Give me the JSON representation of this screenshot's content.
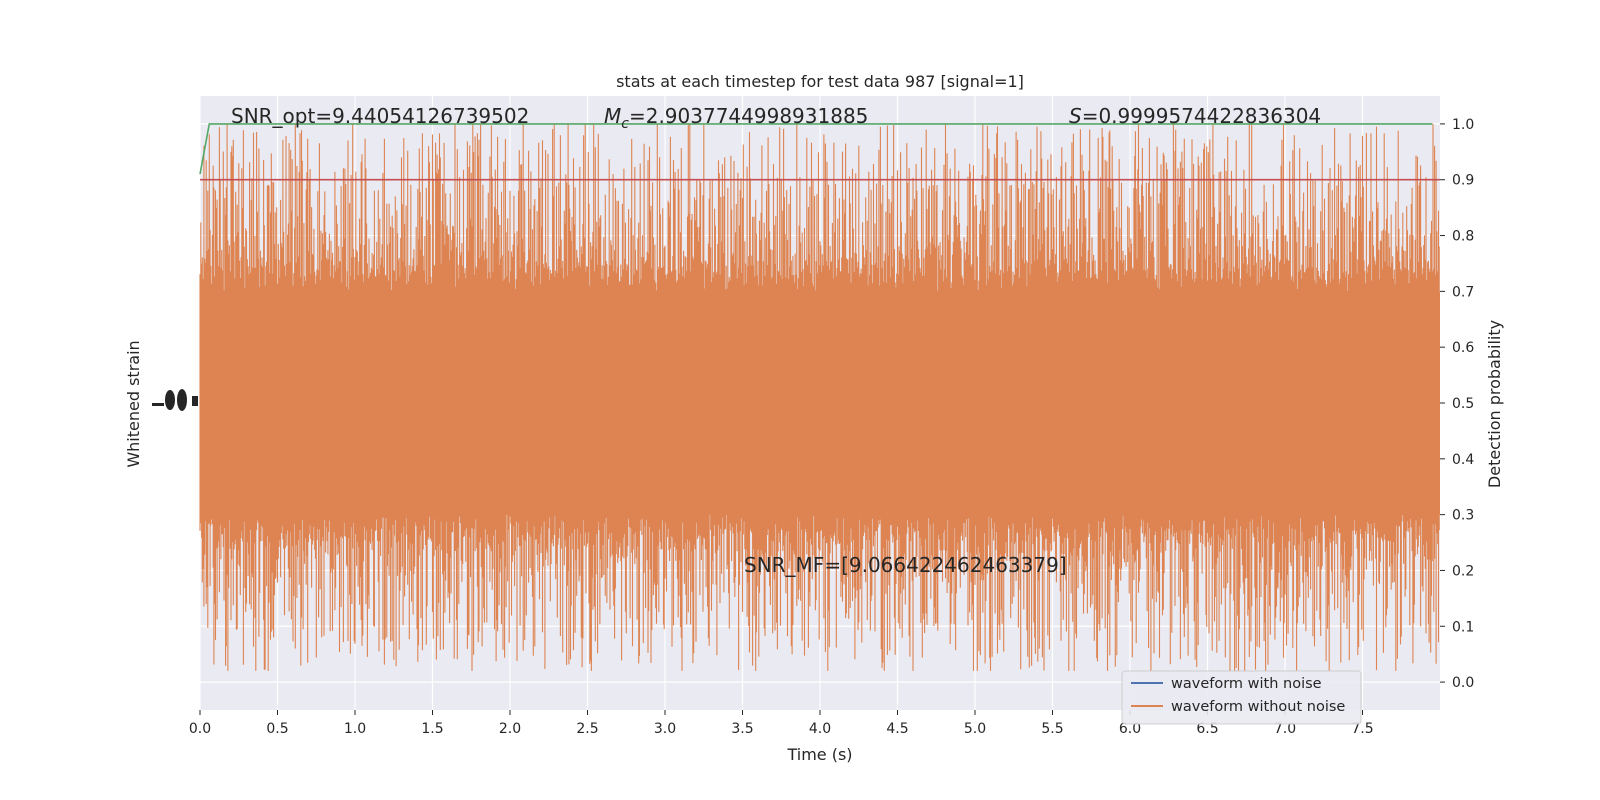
{
  "chart_data": {
    "type": "line",
    "title": "stats at each timestep for test data 987 [signal=1]",
    "xlabel": "Time (s)",
    "ylabel_left": "Whitened strain",
    "ylabel_right": "Detection probability",
    "xlim": [
      0.0,
      8.0
    ],
    "xticks": [
      "0.0",
      "0.5",
      "1.0",
      "1.5",
      "2.0",
      "2.5",
      "3.0",
      "3.5",
      "4.0",
      "4.5",
      "5.0",
      "5.5",
      "6.0",
      "6.5",
      "7.0",
      "7.5"
    ],
    "ylim_right": [
      -0.05,
      1.05
    ],
    "yticks_right": [
      "0.0",
      "0.1",
      "0.2",
      "0.3",
      "0.4",
      "0.5",
      "0.6",
      "0.7",
      "0.8",
      "0.9",
      "1.0"
    ],
    "grid": true,
    "legend_position": "lower-right",
    "annotations": {
      "snr_opt": "SNR_opt=9.44054126739502",
      "mc_symbol": "M",
      "mc_subscript": "c",
      "mc_value": "=2.9037744998931885",
      "s_symbol": "S",
      "s_value": "=0.9999574422836304",
      "snr_mf": "SNR_MF=[9.066422462463379]"
    },
    "series": [
      {
        "name": "waveform with noise",
        "color": "#4c72b0",
        "description": "whitened strain, hidden behind noiseless trace"
      },
      {
        "name": "waveform without noise",
        "color": "#dd8452",
        "band_center": 0.5,
        "band_half_width_dense": 0.2,
        "spike_extent": [
          0.02,
          1.0
        ]
      }
    ],
    "detection_probability": {
      "color": "#55a868",
      "x": [
        0.0,
        0.06,
        7.95
      ],
      "y": [
        0.91,
        1.0,
        1.0
      ]
    },
    "threshold": {
      "color": "#c44e52",
      "value": 0.9
    }
  }
}
